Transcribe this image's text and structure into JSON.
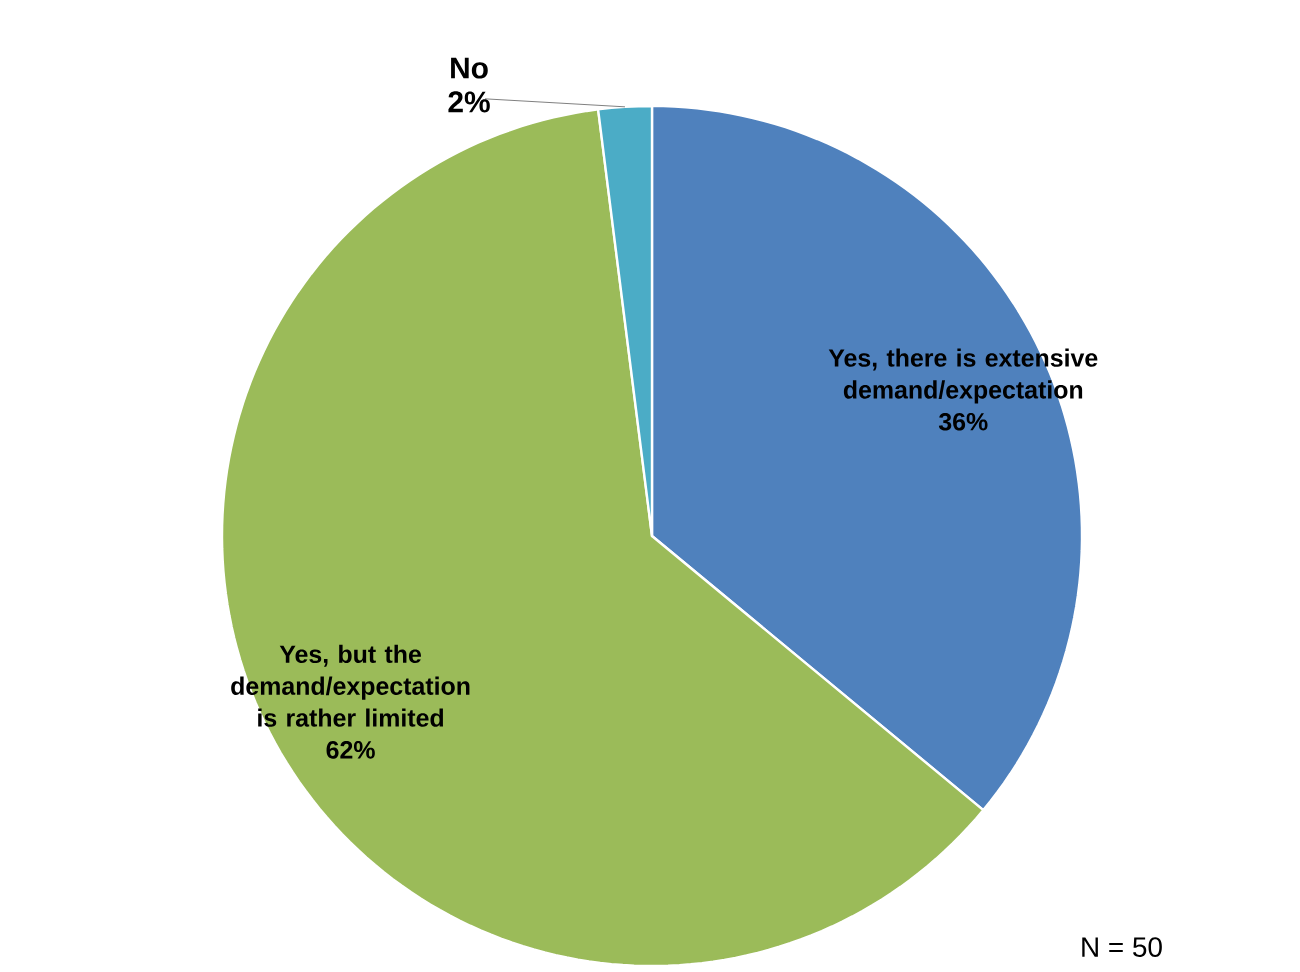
{
  "chart_data": {
    "type": "pie",
    "categories": [
      "Yes, there is extensive demand/expectation",
      "Yes, but the demand/expectation is rather limited",
      "No"
    ],
    "values": [
      36,
      62,
      2
    ],
    "value_labels": [
      "36%",
      "62%",
      "2%"
    ],
    "colors": [
      "#4f81bd",
      "#9bbb59",
      "#4bacc6"
    ],
    "annotations": [
      "N = 50"
    ]
  }
}
